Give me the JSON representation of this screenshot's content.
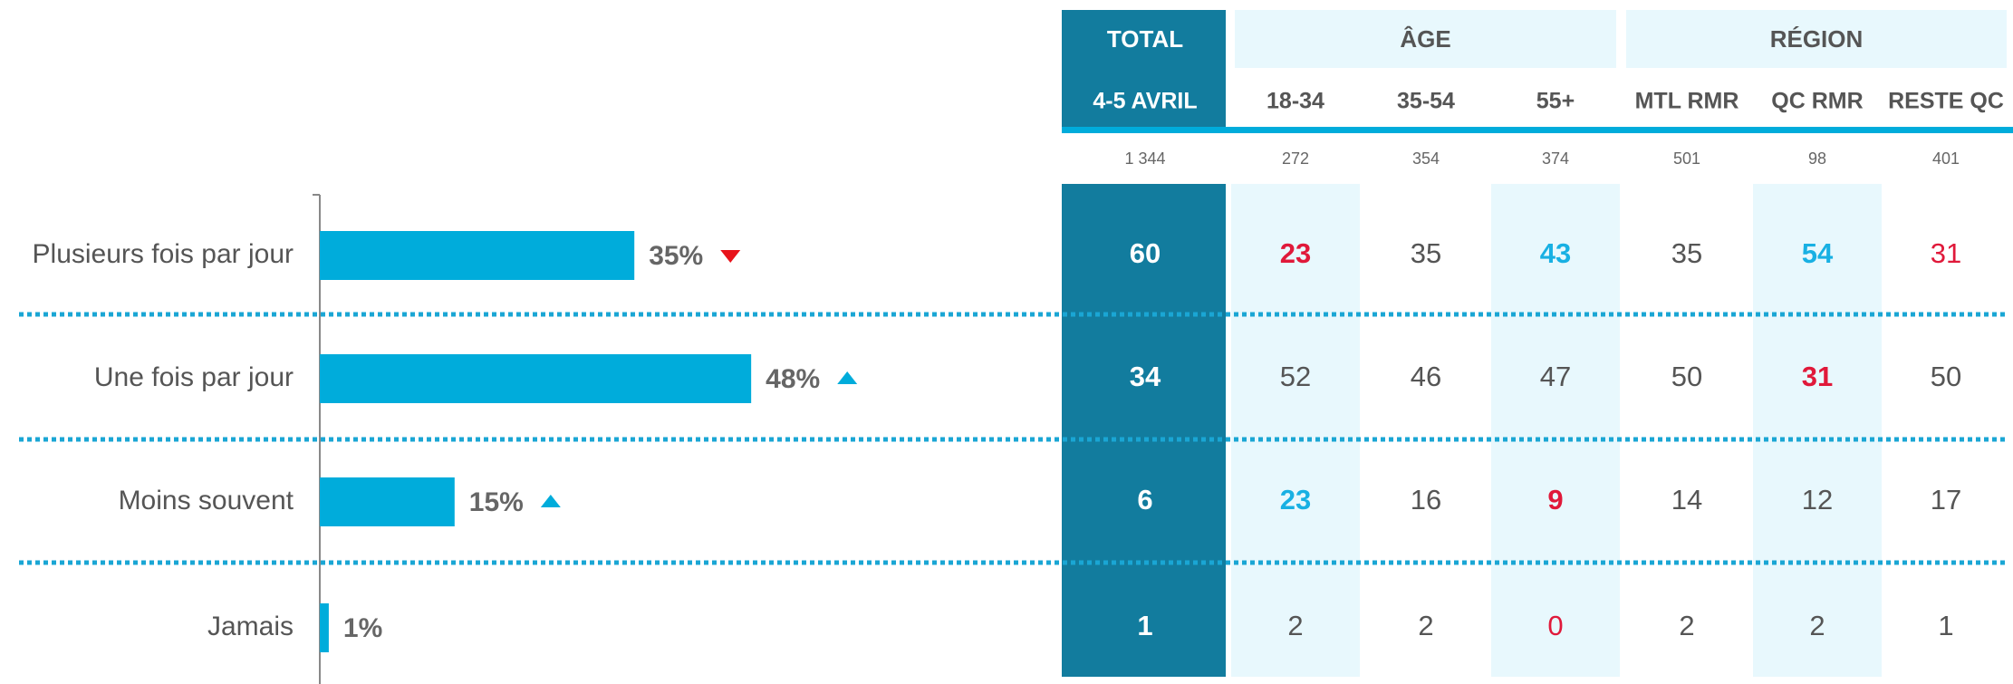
{
  "chart_data": {
    "type": "bar",
    "orientation": "horizontal",
    "categories": [
      "Plusieurs fois par jour",
      "Une fois par jour",
      "Moins souvent",
      "Jamais"
    ],
    "values": [
      35,
      48,
      15,
      1
    ],
    "value_labels": [
      "35%",
      "48%",
      "15%",
      "1%"
    ],
    "trend": [
      "down",
      "up",
      "up",
      null
    ],
    "color": "#00acdb",
    "trend_colors": {
      "down": "#e8131b",
      "up": "#00acdb"
    }
  },
  "table": {
    "groups": [
      {
        "label": "TOTAL",
        "span": 1
      },
      {
        "label": "ÂGE",
        "span": 3
      },
      {
        "label": "RÉGION",
        "span": 3
      }
    ],
    "columns": [
      "4-5 AVRIL",
      "18-34",
      "35-54",
      "55+",
      "MTL RMR",
      "QC RMR",
      "RESTE QC"
    ],
    "bases": [
      "1 344",
      "272",
      "354",
      "374",
      "501",
      "98",
      "401"
    ],
    "rows": [
      [
        60,
        23,
        35,
        43,
        35,
        54,
        31
      ],
      [
        34,
        52,
        46,
        47,
        50,
        31,
        50
      ],
      [
        6,
        23,
        16,
        9,
        14,
        12,
        17
      ],
      [
        1,
        2,
        2,
        0,
        2,
        2,
        1
      ]
    ],
    "highlights": [
      [
        null,
        "red-bold",
        null,
        "blue-bold",
        null,
        "blue-bold",
        "red"
      ],
      [
        null,
        null,
        null,
        null,
        null,
        "red-bold",
        null
      ],
      [
        null,
        "blue-bold",
        null,
        "red-bold",
        null,
        null,
        null
      ],
      [
        null,
        null,
        null,
        "red",
        null,
        null,
        null
      ]
    ]
  }
}
